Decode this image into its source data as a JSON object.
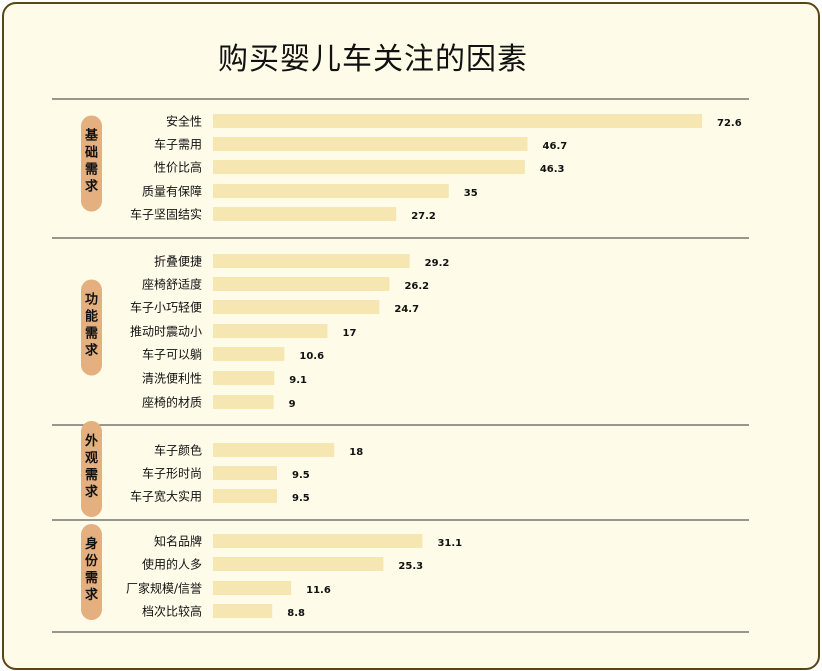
{
  "title": "购买婴儿车关注的因素",
  "colors": {
    "background": "#fefbe9",
    "frame": "#5b4416",
    "bar": "#f6e7b2",
    "group_label_bg": "#e5b07f",
    "text": "#111111"
  },
  "chart_data": {
    "type": "bar",
    "orientation": "horizontal",
    "title": "购买婴儿车关注的因素",
    "xlim": [
      0,
      75
    ],
    "grid": false,
    "legend": "none",
    "groups": [
      {
        "name": "基础需求",
        "items": [
          {
            "label": "安全性",
            "value": 72.6
          },
          {
            "label": "车子需用",
            "value": 46.7
          },
          {
            "label": "性价比高",
            "value": 46.3
          },
          {
            "label": "质量有保障",
            "value": 35
          },
          {
            "label": "车子坚固结实",
            "value": 27.2
          }
        ]
      },
      {
        "name": "功能需求",
        "items": [
          {
            "label": "折叠便捷",
            "value": 29.2
          },
          {
            "label": "座椅舒适度",
            "value": 26.2
          },
          {
            "label": "车子小巧轻便",
            "value": 24.7
          },
          {
            "label": "推动时震动小",
            "value": 17
          },
          {
            "label": "车子可以躺",
            "value": 10.6
          },
          {
            "label": "清洗便利性",
            "value": 9.1
          },
          {
            "label": "座椅的材质",
            "value": 9
          }
        ]
      },
      {
        "name": "外观需求",
        "items": [
          {
            "label": "车子颜色",
            "value": 18
          },
          {
            "label": "车子形时尚",
            "value": 9.5
          },
          {
            "label": "车子宽大实用",
            "value": 9.5
          }
        ]
      },
      {
        "name": "身份需求",
        "items": [
          {
            "label": "知名品牌",
            "value": 31.1
          },
          {
            "label": "使用的人多",
            "value": 25.3
          },
          {
            "label": "厂家规模/信誉",
            "value": 11.6
          },
          {
            "label": "档次比较高",
            "value": 8.8
          }
        ]
      }
    ]
  }
}
